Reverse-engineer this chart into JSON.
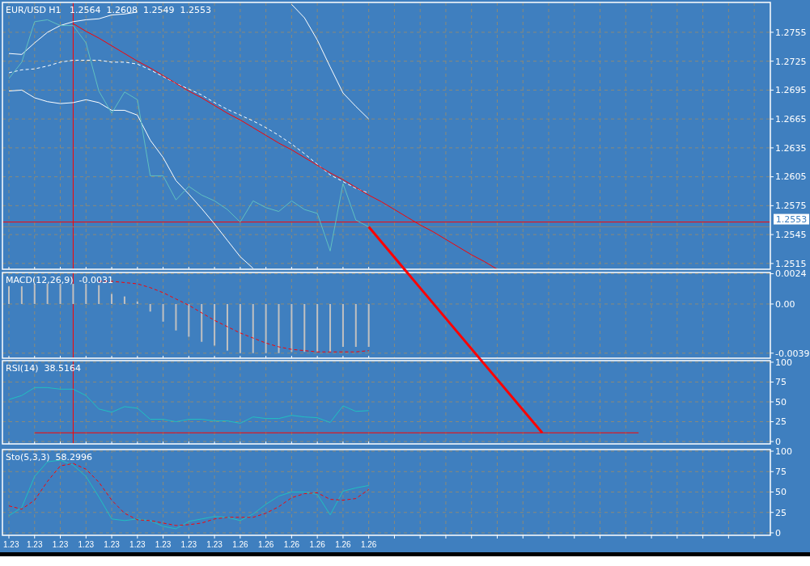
{
  "chart_data": [
    {
      "type": "line",
      "title": "EUR/USD H1   1.2564  1.2608  1.2549  1.2553",
      "categories": [
        "1.23",
        null,
        "1.23",
        null,
        "1.23",
        null,
        "1.23",
        null,
        "1.23",
        null,
        "1.23",
        null,
        "1.23",
        null,
        "1.23",
        null,
        "1.23",
        null,
        "1.26",
        null,
        "1.26",
        null,
        "1.26",
        null,
        "1.26",
        null,
        "1.26",
        null,
        "1.26",
        null,
        null,
        null,
        null,
        null,
        null,
        null,
        null,
        null,
        null,
        null,
        null,
        null,
        null,
        null,
        null,
        null,
        null,
        null,
        null,
        null,
        null,
        null,
        null,
        null,
        null,
        null,
        null,
        null,
        null,
        null
      ],
      "ylim": [
        1.2509,
        1.2786
      ],
      "yticks": [
        1.2515,
        1.2545,
        1.2575,
        1.2605,
        1.2635,
        1.2665,
        1.2695,
        1.2725,
        1.2755
      ],
      "grid": true,
      "tick_labels": "y",
      "series": [
        {
          "color": "#ffffff",
          "values": [
            1.2733,
            1.2732,
            1.2744,
            1.2755,
            1.2762,
            1.2766,
            1.2768,
            1.2769,
            1.2773,
            1.2774,
            1.2776,
            null,
            null,
            null,
            null,
            null,
            null,
            null,
            null,
            null,
            null,
            null,
            1.2784,
            1.277,
            1.2747,
            1.2719,
            1.2692,
            1.2678,
            1.2665,
            null,
            null,
            null,
            null,
            null,
            null,
            null,
            null,
            null,
            null,
            null,
            null,
            null,
            null,
            null,
            null,
            null,
            null,
            null,
            null,
            null,
            null,
            null,
            null,
            null,
            null,
            null,
            null,
            null,
            null,
            null
          ]
        },
        {
          "color": "#ffffff",
          "line_style": "dashed",
          "values": [
            1.2713,
            1.2716,
            1.2717,
            1.272,
            1.2724,
            1.2726,
            1.2726,
            1.2726,
            1.2724,
            1.2724,
            1.2722,
            1.2716,
            1.2709,
            1.2702,
            1.2696,
            1.269,
            1.2682,
            1.2675,
            1.2669,
            1.2663,
            1.2656,
            1.2648,
            1.2639,
            1.2629,
            1.2618,
            1.2607,
            1.26,
            1.2593,
            1.2588,
            null,
            null,
            null,
            null,
            null,
            null,
            null,
            null,
            null,
            null,
            null,
            null,
            null,
            null,
            null,
            null,
            null,
            null,
            null,
            null,
            null,
            null,
            null,
            null,
            null,
            null,
            null,
            null,
            null,
            null,
            null
          ]
        },
        {
          "color": "#ffffff",
          "values": [
            1.2694,
            1.2695,
            1.2687,
            1.2683,
            1.2681,
            1.2682,
            1.2685,
            1.2682,
            1.2674,
            1.2674,
            1.2669,
            1.2643,
            1.2625,
            1.2601,
            1.2587,
            1.2572,
            1.2556,
            1.2539,
            1.2522,
            1.251,
            null,
            null,
            null,
            null,
            null,
            null,
            null,
            null,
            null,
            null,
            null,
            null,
            null,
            null,
            null,
            null,
            null,
            null,
            null,
            null,
            null,
            null,
            null,
            null,
            null,
            null,
            null,
            null,
            null,
            null,
            null,
            null,
            null,
            null,
            null,
            null,
            null,
            null,
            null,
            null
          ]
        },
        {
          "color": "#60c0c0",
          "values": [
            1.2707,
            1.2724,
            1.2766,
            1.2768,
            1.2762,
            1.2762,
            1.2744,
            1.2694,
            1.2671,
            1.2693,
            1.2685,
            1.2606,
            1.2606,
            1.2581,
            1.2595,
            1.2586,
            1.258,
            1.2571,
            1.2558,
            1.258,
            1.2573,
            1.2569,
            1.258,
            1.2571,
            1.2567,
            1.2528,
            1.2598,
            1.256,
            1.2553,
            null,
            null,
            null,
            null,
            null,
            null,
            null,
            null,
            null,
            null,
            null,
            null,
            null,
            null,
            null,
            null,
            null,
            null,
            null,
            null,
            null,
            null,
            null,
            null,
            null,
            null,
            null,
            null,
            null,
            null,
            null
          ]
        },
        {
          "color": "#ff0000",
          "values": [
            null,
            null,
            null,
            null,
            null,
            1.2764,
            1.2756,
            1.2749,
            1.2741,
            1.2733,
            1.2725,
            1.2718,
            1.271,
            1.2702,
            1.2694,
            1.2687,
            1.2679,
            1.2671,
            1.2664,
            1.2656,
            1.2648,
            1.264,
            1.2633,
            1.2625,
            1.2617,
            1.2609,
            1.2602,
            1.2594,
            1.2586,
            1.2579,
            1.2571,
            1.2563,
            1.2555,
            1.2548,
            1.254,
            1.2532,
            1.2524,
            1.2517,
            1.2509,
            null,
            null,
            null,
            null,
            null,
            null,
            null,
            null,
            null,
            null,
            null,
            null,
            null,
            null,
            null,
            null,
            null,
            null,
            null,
            null,
            null
          ]
        }
      ],
      "ref_lines": [
        {
          "axis": "y",
          "value": 1.2558,
          "color": "#ff0000"
        },
        {
          "axis": "y",
          "value": 1.2553,
          "label": "1.2553",
          "color": "#808080"
        }
      ]
    },
    {
      "type": "line",
      "title": "MACD(12,26,9)  -0.0031",
      "categories": [
        "1.23",
        null,
        "1.23",
        null,
        "1.23",
        null,
        "1.23",
        null,
        "1.23",
        null,
        "1.23",
        null,
        "1.23",
        null,
        "1.23",
        null,
        "1.23",
        null,
        "1.26",
        null,
        "1.26",
        null,
        "1.26",
        null,
        "1.26",
        null,
        "1.26",
        null,
        "1.26",
        null,
        null,
        null,
        null,
        null,
        null,
        null,
        null,
        null,
        null,
        null,
        null,
        null,
        null,
        null,
        null,
        null,
        null,
        null,
        null,
        null,
        null,
        null,
        null,
        null,
        null,
        null,
        null,
        null,
        null,
        null
      ],
      "ylim": [
        -0.0043,
        0.0025
      ],
      "yticks": [
        -0.0039,
        {
          "value": 0,
          "label": "0.00"
        },
        0.0024
      ],
      "grid": true,
      "tick_labels": "y",
      "series": [
        {
          "type": "bar",
          "color": "#c0c0c0",
          "values": [
            0.0014,
            0.0014,
            0.0016,
            0.0016,
            0.0016,
            0.0016,
            0.0016,
            0.0015,
            0.0008,
            0.0006,
            0.0002,
            -0.0006,
            -0.0014,
            -0.0021,
            -0.0026,
            -0.003,
            -0.0033,
            -0.0037,
            -0.0039,
            -0.0039,
            -0.0039,
            -0.0039,
            -0.0038,
            -0.0038,
            -0.0038,
            -0.0038,
            -0.0034,
            -0.0034,
            -0.0034,
            null,
            null,
            null,
            null,
            null,
            null,
            null,
            null,
            null,
            null,
            null,
            null,
            null,
            null,
            null,
            null,
            null,
            null,
            null,
            null,
            null,
            null,
            null,
            null,
            null,
            null,
            null,
            null,
            null,
            null,
            null
          ]
        },
        {
          "color": "#ff0000",
          "line_style": "dashed",
          "values": [
            null,
            null,
            null,
            null,
            null,
            null,
            null,
            0.0018,
            0.0018,
            0.0017,
            0.0016,
            0.0013,
            0.0009,
            0.0004,
            -0.0001,
            -0.0007,
            -0.0013,
            -0.0018,
            -0.0023,
            -0.0027,
            -0.0031,
            -0.0034,
            -0.0036,
            -0.0037,
            -0.0038,
            -0.0038,
            -0.0038,
            -0.0038,
            -0.0037,
            null,
            null,
            null,
            null,
            null,
            null,
            null,
            null,
            null,
            null,
            null,
            null,
            null,
            null,
            null,
            null,
            null,
            null,
            null,
            null,
            null,
            null,
            null,
            null,
            null,
            null,
            null,
            null,
            null,
            null,
            null
          ]
        }
      ]
    },
    {
      "type": "line",
      "title": "RSI(14)  38.5164",
      "categories": [
        "1.23",
        null,
        "1.23",
        null,
        "1.23",
        null,
        "1.23",
        null,
        "1.23",
        null,
        "1.23",
        null,
        "1.23",
        null,
        "1.23",
        null,
        "1.23",
        null,
        "1.26",
        null,
        "1.26",
        null,
        "1.26",
        null,
        "1.26",
        null,
        "1.26",
        null,
        "1.26",
        null,
        null,
        null,
        null,
        null,
        null,
        null,
        null,
        null,
        null,
        null,
        null,
        null,
        null,
        null,
        null,
        null,
        null,
        null,
        null,
        null,
        null,
        null,
        null,
        null,
        null,
        null,
        null,
        null,
        null,
        null
      ],
      "ylim": [
        -3,
        102
      ],
      "yticks": [
        0,
        25,
        50,
        75,
        100
      ],
      "grid": true,
      "tick_labels": "y",
      "series": [
        {
          "color": "#20c0c0",
          "values": [
            53,
            58,
            68,
            68,
            66,
            66,
            58,
            41,
            37,
            44,
            42,
            28,
            28,
            25,
            28,
            28,
            26,
            26,
            23,
            31,
            29,
            29,
            33,
            31,
            30,
            24,
            45,
            38,
            39,
            null,
            null,
            null,
            null,
            null,
            null,
            null,
            null,
            null,
            null,
            null,
            null,
            null,
            null,
            null,
            null,
            null,
            null,
            null,
            null,
            null,
            null,
            null,
            null,
            null,
            null,
            null,
            null,
            null,
            null,
            null
          ]
        },
        {
          "color": "#ff0000",
          "values": [
            null,
            null,
            11,
            11,
            11,
            11,
            11,
            11,
            11,
            11,
            11,
            11,
            11,
            11,
            11,
            11,
            11,
            11,
            11,
            11,
            11,
            11,
            11,
            11,
            11,
            11,
            11,
            11,
            11,
            11,
            11,
            11,
            11,
            11,
            11,
            11,
            11,
            11,
            11,
            11,
            11,
            11,
            11,
            11,
            11,
            11,
            11,
            11,
            11,
            11,
            null,
            null,
            null,
            null,
            null,
            null,
            null,
            null,
            null,
            null
          ]
        }
      ]
    },
    {
      "type": "line",
      "title": "Sto(5,3,3)  58.2996",
      "categories": [
        "1.23",
        null,
        "1.23",
        null,
        "1.23",
        null,
        "1.23",
        null,
        "1.23",
        null,
        "1.23",
        null,
        "1.23",
        null,
        "1.23",
        null,
        "1.23",
        null,
        "1.26",
        null,
        "1.26",
        null,
        "1.26",
        null,
        "1.26",
        null,
        "1.26",
        null,
        "1.26",
        null,
        null,
        null,
        null,
        null,
        null,
        null,
        null,
        null,
        null,
        null,
        null,
        null,
        null,
        null,
        null,
        null,
        null,
        null,
        null,
        null,
        null,
        null,
        null,
        null,
        null,
        null,
        null,
        null,
        null,
        null
      ],
      "ylim": [
        -3,
        102
      ],
      "yticks": [
        0,
        25,
        50,
        75,
        100
      ],
      "grid": true,
      "series": [
        {
          "color": "#20c0c0",
          "values": [
            21,
            31,
            69,
            87,
            89,
            83,
            69,
            44,
            17,
            15,
            17,
            15,
            8,
            5,
            14,
            17,
            20,
            19,
            15,
            23,
            35,
            45,
            50,
            50,
            47,
            22,
            51,
            55,
            58,
            null,
            null,
            null,
            null,
            null,
            null,
            null,
            null,
            null,
            null,
            null,
            null,
            null,
            null,
            null,
            null,
            null,
            null,
            null,
            null,
            null,
            null,
            null,
            null,
            null,
            null,
            null,
            null,
            null,
            null,
            null
          ]
        },
        {
          "color": "#ff0000",
          "line_style": "dashed",
          "values": [
            33,
            29,
            40,
            63,
            82,
            85,
            78,
            62,
            40,
            24,
            16,
            15,
            12,
            9,
            10,
            12,
            17,
            19,
            19,
            19,
            24,
            32,
            43,
            48,
            49,
            41,
            40,
            42,
            53,
            null,
            null,
            null,
            null,
            null,
            null,
            null,
            null,
            null,
            null,
            null,
            null,
            null,
            null,
            null,
            null,
            null,
            null,
            null,
            null,
            null,
            null,
            null,
            null,
            null,
            null,
            null,
            null,
            null,
            null,
            null
          ]
        }
      ]
    }
  ]
}
